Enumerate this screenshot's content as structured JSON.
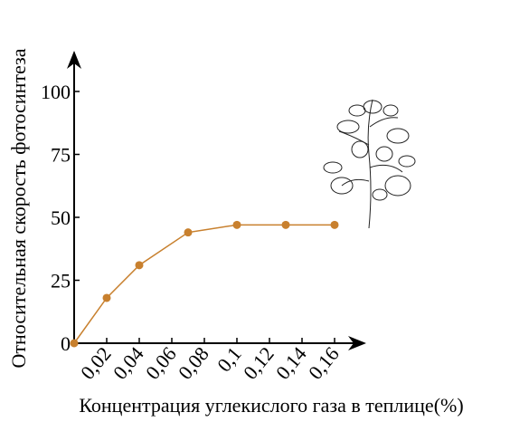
{
  "chart_data": {
    "type": "line",
    "y_label": "Относительная скорость фотосинтеза",
    "x_label": "Концентрация углекислого газа в теплице(%)",
    "x": [
      0,
      0.02,
      0.04,
      0.07,
      0.1,
      0.13,
      0.16
    ],
    "values": [
      0,
      18,
      31,
      44,
      47,
      47,
      47
    ],
    "color": "#c8802e",
    "xlim": [
      0,
      0.175
    ],
    "ylim": [
      0,
      115
    ],
    "xticks": [
      {
        "value": 0.02,
        "label": "0,02"
      },
      {
        "value": 0.04,
        "label": "0,04"
      },
      {
        "value": 0.06,
        "label": "0,06"
      },
      {
        "value": 0.08,
        "label": "0,08"
      },
      {
        "value": 0.1,
        "label": "0,1"
      },
      {
        "value": 0.12,
        "label": "0,12"
      },
      {
        "value": 0.14,
        "label": "0,14"
      },
      {
        "value": 0.16,
        "label": "0,16"
      }
    ],
    "yticks": [
      0,
      25,
      50,
      75,
      100
    ]
  }
}
